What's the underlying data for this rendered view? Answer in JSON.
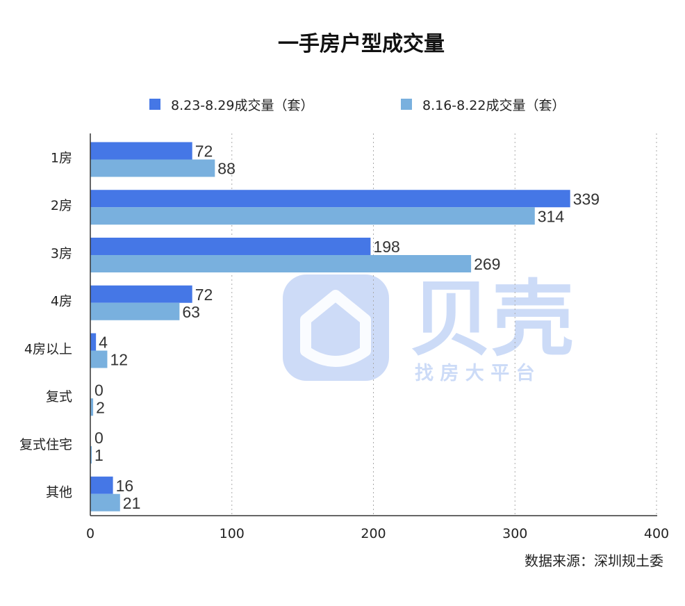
{
  "chart_data": {
    "type": "bar",
    "orientation": "horizontal",
    "title": "一手房户型成交量",
    "categories": [
      "1房",
      "2房",
      "3房",
      "4房",
      "4房以上",
      "复式",
      "复式住宅",
      "其他"
    ],
    "series": [
      {
        "name": "8.23-8.29成交量（套）",
        "color": "#4577e6",
        "values": [
          72,
          339,
          198,
          72,
          4,
          0,
          0,
          16
        ]
      },
      {
        "name": "8.16-8.22成交量（套）",
        "color": "#79b0de",
        "values": [
          88,
          314,
          269,
          63,
          12,
          2,
          1,
          21
        ]
      }
    ],
    "xlim": [
      0,
      400
    ],
    "xticks": [
      0,
      100,
      200,
      300,
      400
    ],
    "grid": "vertical dotted",
    "legend": "top",
    "data_labels": true
  },
  "source": "数据来源：深圳规土委",
  "watermark": {
    "brand": "贝壳",
    "slogan": "找 房 大 平 台"
  }
}
